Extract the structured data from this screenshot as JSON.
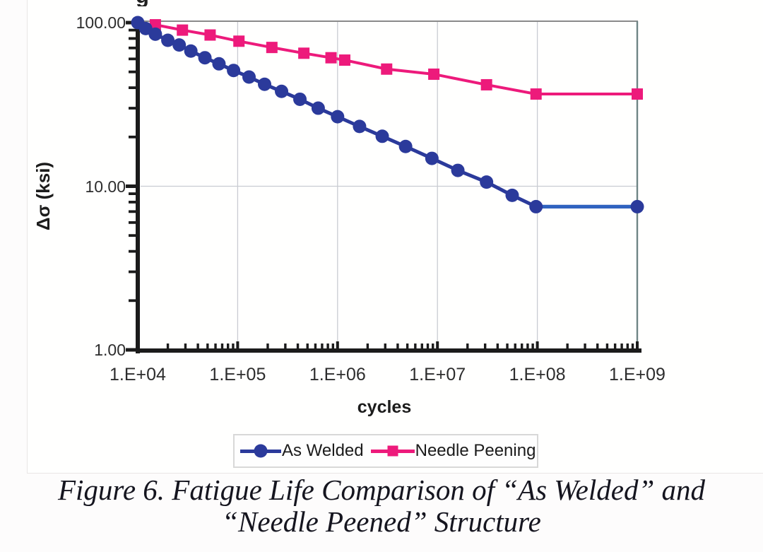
{
  "page": {
    "cropped_title_fragment": "g"
  },
  "chart_data": {
    "type": "line",
    "xlabel": "cycles",
    "ylabel": "Δσ (ksi)",
    "x_scale": "log",
    "y_scale": "log",
    "xlim": [
      10000,
      1000000000
    ],
    "ylim": [
      1,
      100
    ],
    "grid": true,
    "legend_position": "bottom",
    "x_tick_labels": [
      "1.E+04",
      "1.E+05",
      "1.E+06",
      "1.E+07",
      "1.E+08",
      "1.E+09"
    ],
    "x_tick_values": [
      10000,
      100000,
      1000000,
      10000000,
      100000000,
      1000000000
    ],
    "y_tick_labels": [
      "100.00",
      "10.00",
      "1.00"
    ],
    "y_tick_values": [
      100,
      10,
      1
    ],
    "colors": {
      "grid": "#c9ccd2",
      "border_top": "#8a8a8a",
      "border_right": "#6f8585",
      "axis": "#1b1b1b"
    },
    "series": [
      {
        "name": "Needle Peening",
        "color": "#ed1a7b",
        "marker": "square",
        "line_width": 4,
        "points": [
          [
            15000,
            97
          ],
          [
            28000,
            90
          ],
          [
            53000,
            84
          ],
          [
            103000,
            77
          ],
          [
            220000,
            70.5
          ],
          [
            460000,
            65
          ],
          [
            860000,
            61
          ],
          [
            1180000,
            59
          ],
          [
            3100000,
            52
          ],
          [
            9200000,
            48.4
          ],
          [
            31000000,
            41.7
          ],
          [
            97000000,
            36.6
          ],
          [
            1000000000,
            36.6
          ]
        ]
      },
      {
        "name": "As Welded",
        "color": "#2b3a9b",
        "marker": "circle",
        "line_width": 5,
        "flat_color": "#2f63c0",
        "points": [
          [
            10000,
            100
          ],
          [
            12000,
            92
          ],
          [
            15000,
            85
          ],
          [
            20000,
            78
          ],
          [
            26000,
            73
          ],
          [
            34000,
            67
          ],
          [
            47000,
            61
          ],
          [
            65000,
            56
          ],
          [
            91000,
            51
          ],
          [
            130000,
            46.5
          ],
          [
            186000,
            42
          ],
          [
            275000,
            38
          ],
          [
            420000,
            34
          ],
          [
            640000,
            30
          ],
          [
            1000000,
            26.6
          ],
          [
            1660000,
            23.2
          ],
          [
            2800000,
            20.2
          ],
          [
            4800000,
            17.5
          ],
          [
            8800000,
            14.8
          ],
          [
            16000000,
            12.5
          ],
          [
            31000000,
            10.6
          ],
          [
            56000000,
            8.8
          ],
          [
            97000000,
            7.5
          ],
          [
            1000000000,
            7.5
          ]
        ]
      }
    ]
  },
  "legend": {
    "item_blue": "As Welded",
    "item_pink": "Needle Peening"
  },
  "caption": {
    "line1": "Figure 6. Fatigue Life Comparison of “As Welded” and",
    "line2": "“Needle Peened” Structure"
  }
}
